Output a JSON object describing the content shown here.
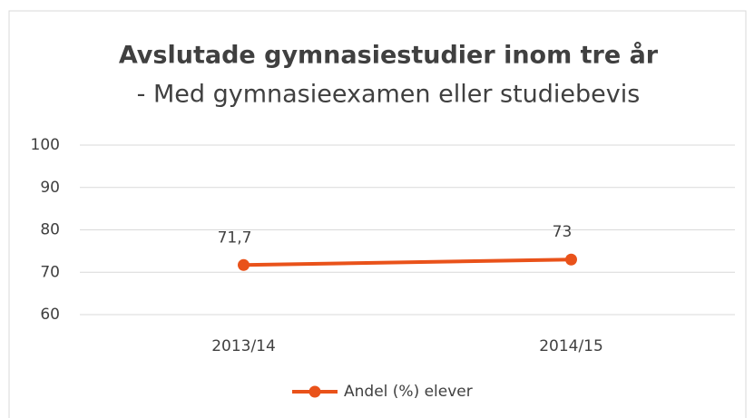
{
  "chart_data": {
    "type": "line",
    "title": "Avslutade gymnasiestudier inom tre år",
    "subtitle": "- Med gymnasieexamen eller studiebevis",
    "categories": [
      "2013/14",
      "2014/15"
    ],
    "series": [
      {
        "name": "Andel (%) elever",
        "color": "#e9521a",
        "values": [
          71.7,
          73
        ],
        "value_labels": [
          "71,7",
          "73"
        ]
      }
    ],
    "ylim": [
      60,
      100
    ],
    "yticks": [
      60,
      70,
      80,
      90,
      100
    ],
    "grid": true,
    "legend": "bottom"
  }
}
